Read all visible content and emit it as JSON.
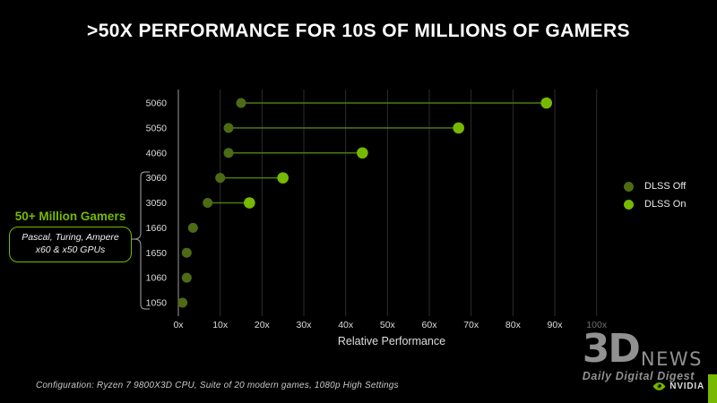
{
  "title": ">50X PERFORMANCE FOR 10S OF MILLIONS OF GAMERS",
  "colors": {
    "background": "#000000",
    "nvidia_green": "#76b900",
    "dlss_off_green": "#4d6b15",
    "connector_green": "#4a7c10",
    "gridline": "#2d2d2d",
    "axis_line": "#9a9a9a",
    "tick_text": "#dedede",
    "muted_tick": "#6f6f6f",
    "bracket": "#8a8a8a"
  },
  "chart_data": {
    "type": "scatter",
    "subtype": "dumbbell",
    "title": ">50X PERFORMANCE FOR 10S OF MILLIONS OF GAMERS",
    "xlabel": "Relative Performance",
    "x_ticks": [
      "0x",
      "10x",
      "20x",
      "30x",
      "40x",
      "50x",
      "60x",
      "70x",
      "80x",
      "90x",
      "100x"
    ],
    "xlim": [
      0,
      100
    ],
    "grid": "vertical",
    "legend_position": "right",
    "categories": [
      "5060",
      "5050",
      "4060",
      "3060",
      "3050",
      "1660",
      "1650",
      "1060",
      "1050"
    ],
    "series": [
      {
        "name": "DLSS Off",
        "values": [
          15,
          12,
          12,
          10,
          7,
          3.5,
          2,
          2,
          1
        ]
      },
      {
        "name": "DLSS On",
        "values": [
          88,
          67,
          44,
          25,
          17,
          null,
          null,
          null,
          null
        ]
      }
    ]
  },
  "legend": {
    "items": [
      {
        "label": "DLSS Off"
      },
      {
        "label": "DLSS On"
      }
    ]
  },
  "annotation": {
    "heading": "50+ Million Gamers",
    "box_line1": "Pascal, Turing, Ampere",
    "box_line2": "x60 & x50 GPUs"
  },
  "footer": {
    "config_note": "Configuration:  Ryzen 7 9800X3D CPU, Suite of 20 modern games, 1080p High Settings",
    "nvidia_logo_text": "NVIDIA"
  },
  "watermark": {
    "big": "3D",
    "news": "NEWS",
    "tagline": "Daily Digital Digest"
  }
}
